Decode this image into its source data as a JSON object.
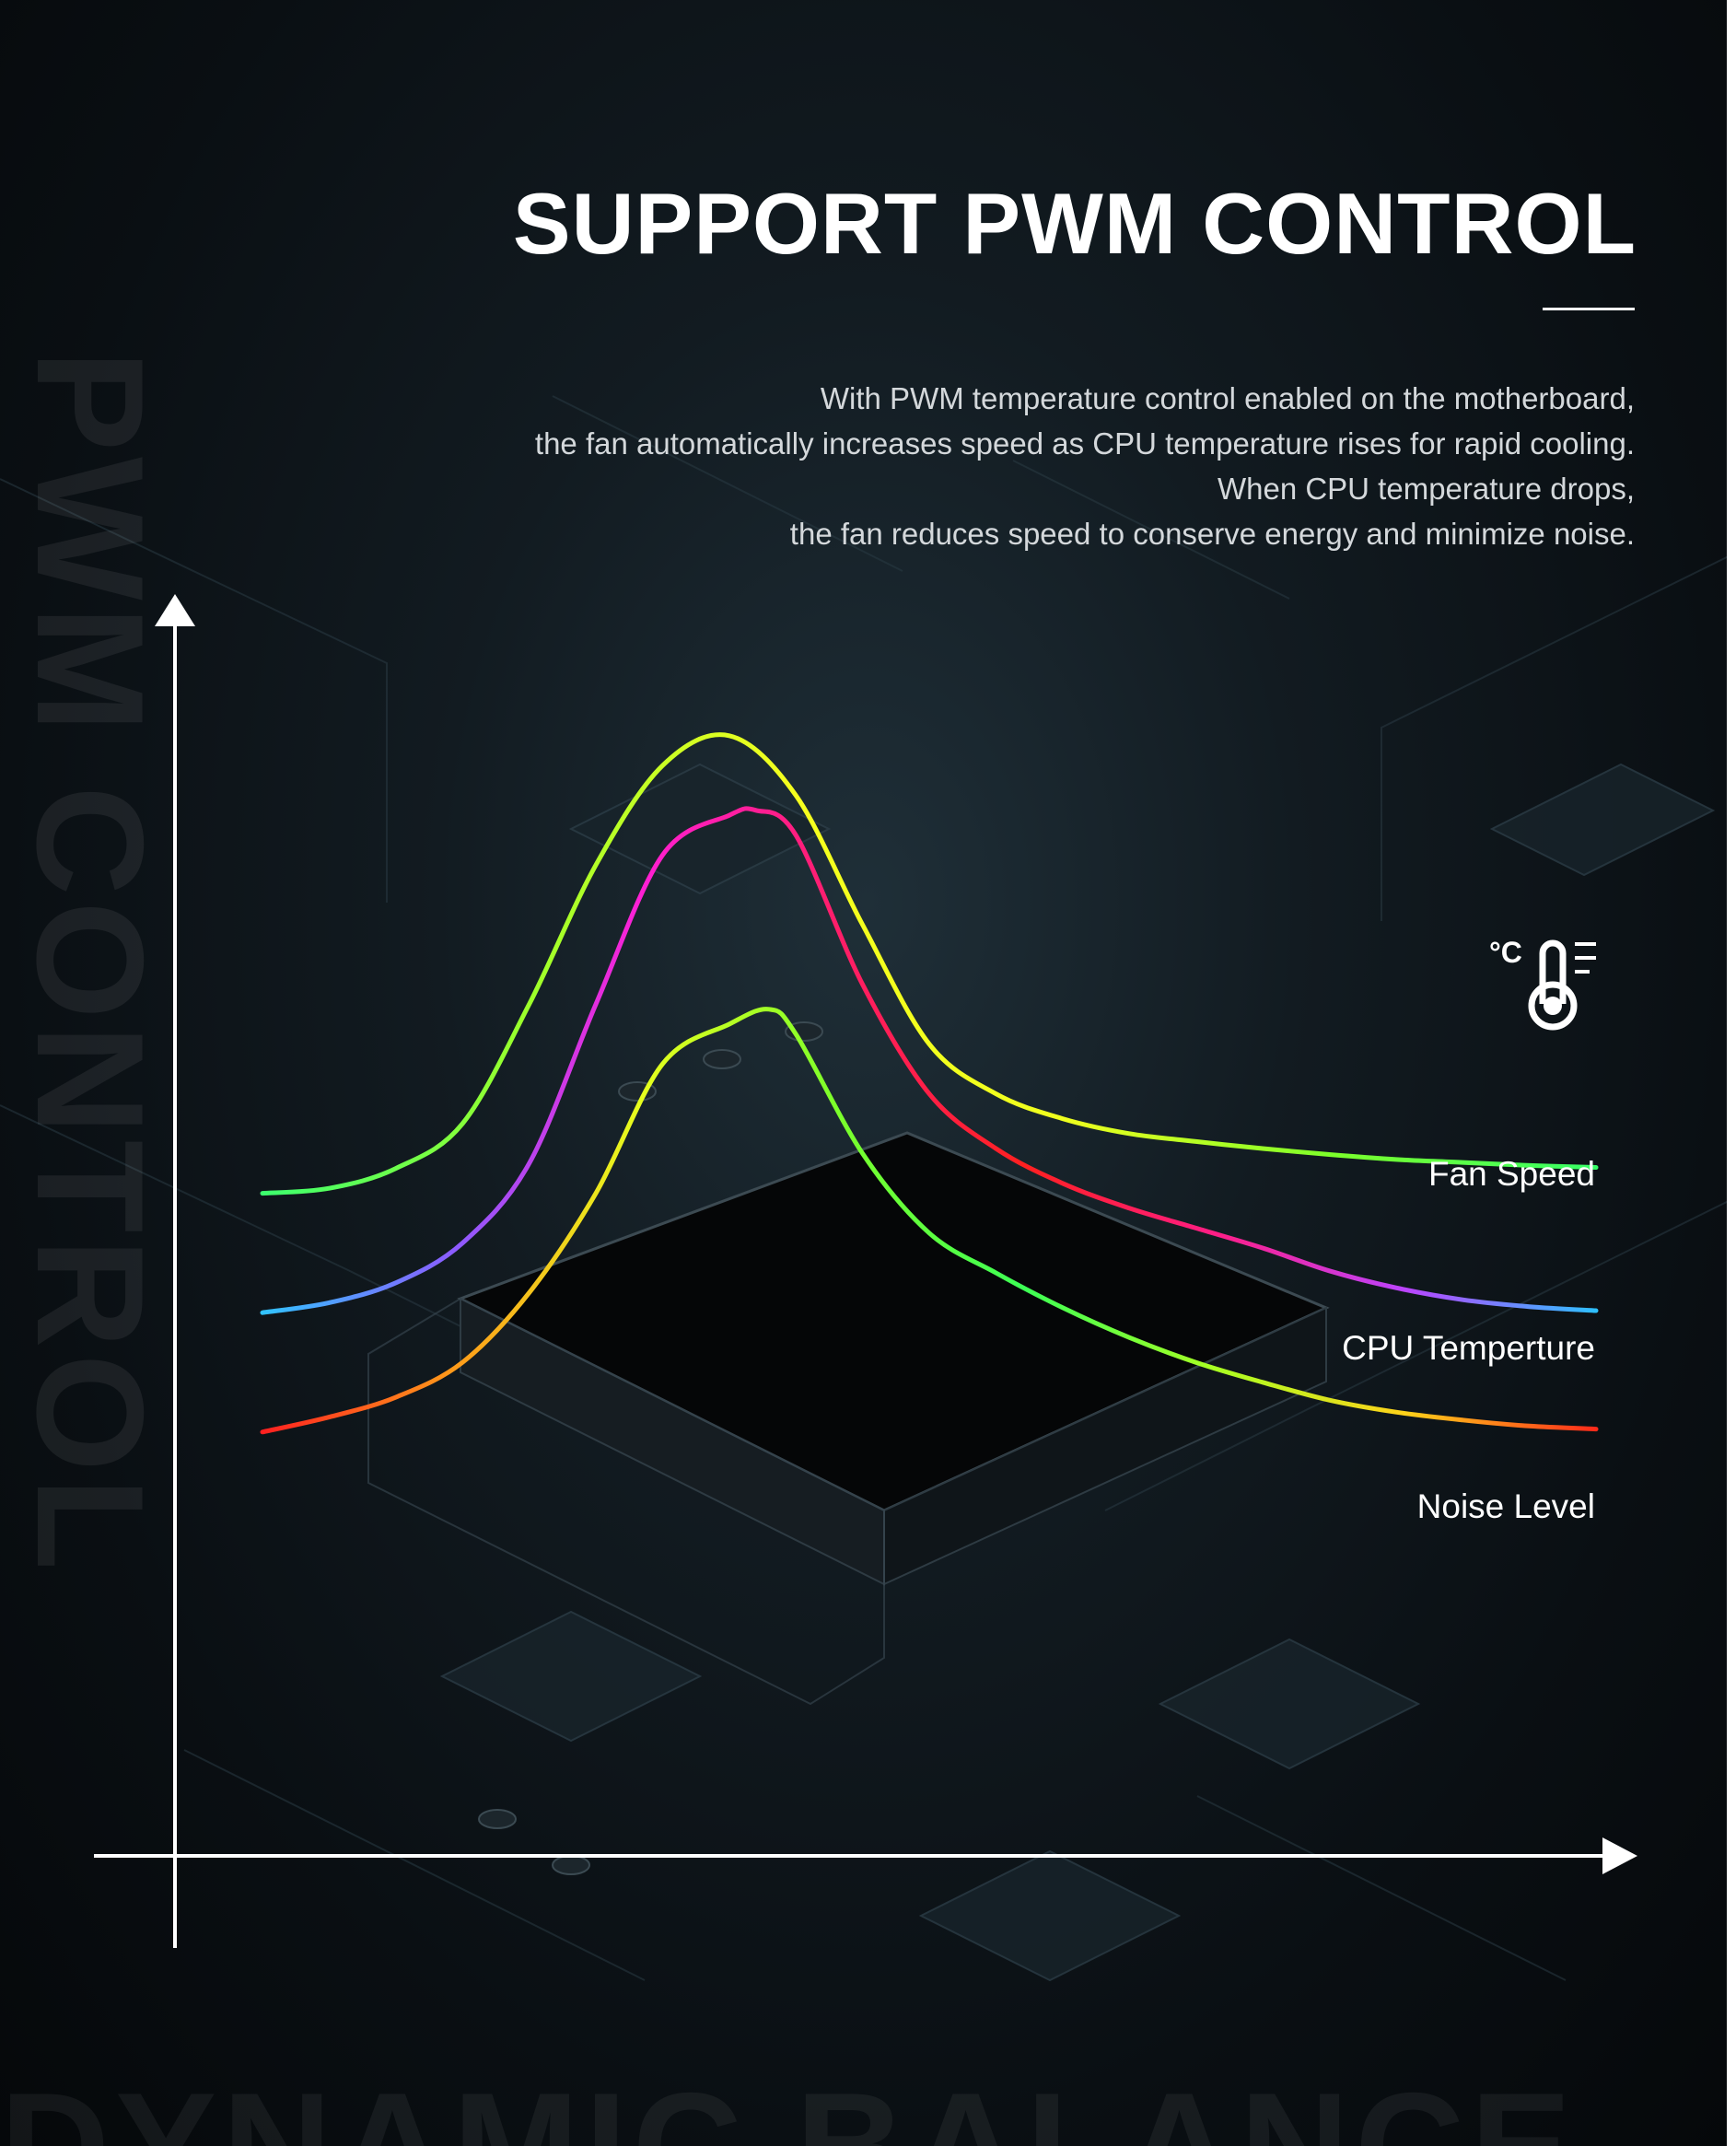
{
  "header": {
    "title": "SUPPORT PWM CONTROL",
    "description_lines": [
      "With PWM temperature control enabled on the motherboard,",
      "the fan automatically increases speed as CPU temperature rises for rapid cooling.",
      "When CPU temperature drops,",
      "the fan reduces speed to conserve energy and minimize noise."
    ]
  },
  "watermark": {
    "side_text": "PWM CONTROL",
    "bottom_text": "DYNAMIC BALANCE"
  },
  "icons": {
    "thermometer": "thermometer-icon",
    "thermometer_unit": "°C"
  },
  "colors": {
    "background": "#0a0f13",
    "axis": "#ffffff",
    "text": "#ffffff"
  },
  "chart_data": {
    "type": "line",
    "title": "",
    "xlabel": "",
    "ylabel": "",
    "xlim": [
      0,
      100
    ],
    "ylim": [
      0,
      100
    ],
    "grid": false,
    "legend": "right, inline next to each curve",
    "series": [
      {
        "name": "Fan Speed",
        "x": [
          0,
          5,
          10,
          15,
          20,
          25,
          30,
          35,
          40,
          45,
          50,
          55,
          60,
          65,
          70,
          75,
          80,
          85,
          90,
          95,
          100
        ],
        "y": [
          43,
          43.5,
          45.5,
          50,
          62,
          76,
          86,
          89,
          83,
          70,
          58,
          53,
          50.5,
          49,
          48.2,
          47.5,
          46.9,
          46.4,
          46.1,
          45.8,
          45.6
        ],
        "gradient": [
          "#3cff6e",
          "#9dff2a",
          "#f6ff1e",
          "#f0ff1e",
          "#7dff2a",
          "#36ff66"
        ]
      },
      {
        "name": "CPU Temperture",
        "x": [
          0,
          5,
          10,
          15,
          20,
          25,
          30,
          35,
          37,
          40,
          45,
          50,
          55,
          60,
          65,
          70,
          75,
          80,
          85,
          90,
          95,
          100
        ],
        "y": [
          31,
          32,
          34,
          38,
          46,
          62,
          77,
          81,
          81.5,
          79,
          64,
          53,
          47.5,
          44,
          41.5,
          39.5,
          37.5,
          35.2,
          33.5,
          32.3,
          31.6,
          31.2
        ],
        "gradient": [
          "#31c3ff",
          "#8b5cff",
          "#ff1fd3",
          "#ff1e6b",
          "#ff2020",
          "#ff1e86",
          "#bb44ff",
          "#2ec0ff"
        ]
      },
      {
        "name": "Noise Level",
        "x": [
          0,
          5,
          10,
          15,
          20,
          25,
          30,
          35,
          38,
          40,
          45,
          50,
          55,
          60,
          65,
          70,
          75,
          80,
          85,
          90,
          95,
          100
        ],
        "y": [
          19,
          20.5,
          22.5,
          26,
          33,
          43,
          56,
          60,
          61.5,
          59,
          47,
          39,
          35,
          31.5,
          28.5,
          26,
          24,
          22.2,
          21,
          20.2,
          19.6,
          19.3
        ],
        "gradient": [
          "#ff2020",
          "#ff9a1a",
          "#e6ff1e",
          "#7dff2a",
          "#3cff55",
          "#a9ff22",
          "#ffd21a",
          "#ff2a1a"
        ]
      }
    ]
  }
}
